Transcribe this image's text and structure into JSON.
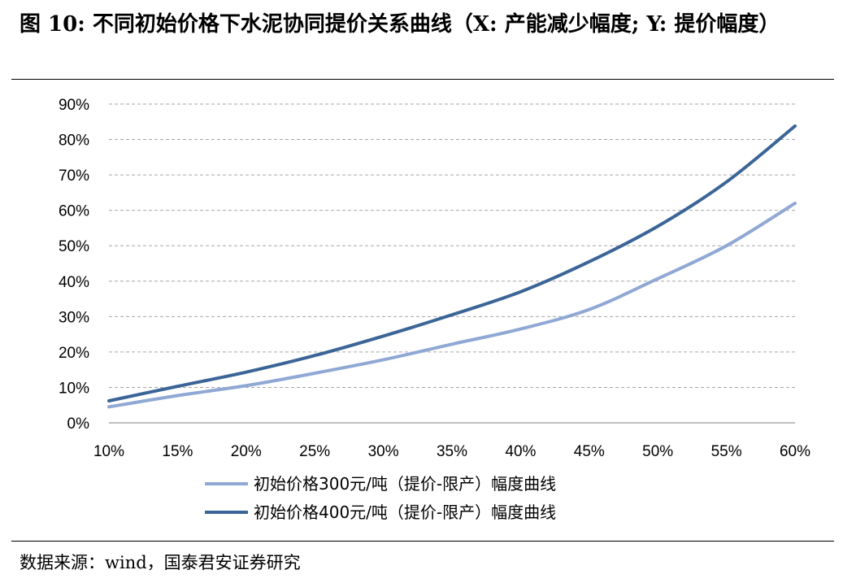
{
  "title": "图 10: 不同初始价格下水泥协同提价关系曲线（X: 产能减少幅度; Y: 提价幅度）",
  "source": "数据来源：wind，国泰君安证券研究",
  "colors": {
    "series1": "#8FA8D4",
    "series2": "#3B6597",
    "grid": "#A6A6A6"
  },
  "chart_data": {
    "type": "line",
    "xlim": [
      0.1,
      0.6
    ],
    "ylim": [
      0,
      0.9
    ],
    "xticks": [
      "10%",
      "15%",
      "20%",
      "25%",
      "30%",
      "35%",
      "40%",
      "45%",
      "50%",
      "55%",
      "60%"
    ],
    "yticks": [
      "0%",
      "10%",
      "20%",
      "30%",
      "40%",
      "50%",
      "60%",
      "70%",
      "80%",
      "90%"
    ],
    "grid": "horizontal dashed",
    "legend": "bottom",
    "series": [
      {
        "name": "初始价格300元/吨（提价-限产）幅度曲线",
        "x": [
          0.1,
          0.15,
          0.2,
          0.25,
          0.3,
          0.35,
          0.4,
          0.45,
          0.5,
          0.55,
          0.6
        ],
        "y": [
          0.045,
          0.077,
          0.105,
          0.14,
          0.178,
          0.222,
          0.265,
          0.32,
          0.407,
          0.5,
          0.62
        ]
      },
      {
        "name": "初始价格400元/吨（提价-限产）幅度曲线",
        "x": [
          0.1,
          0.15,
          0.2,
          0.25,
          0.3,
          0.35,
          0.4,
          0.45,
          0.5,
          0.55,
          0.6
        ],
        "y": [
          0.062,
          0.103,
          0.143,
          0.19,
          0.245,
          0.305,
          0.37,
          0.455,
          0.555,
          0.68,
          0.838
        ]
      }
    ]
  }
}
